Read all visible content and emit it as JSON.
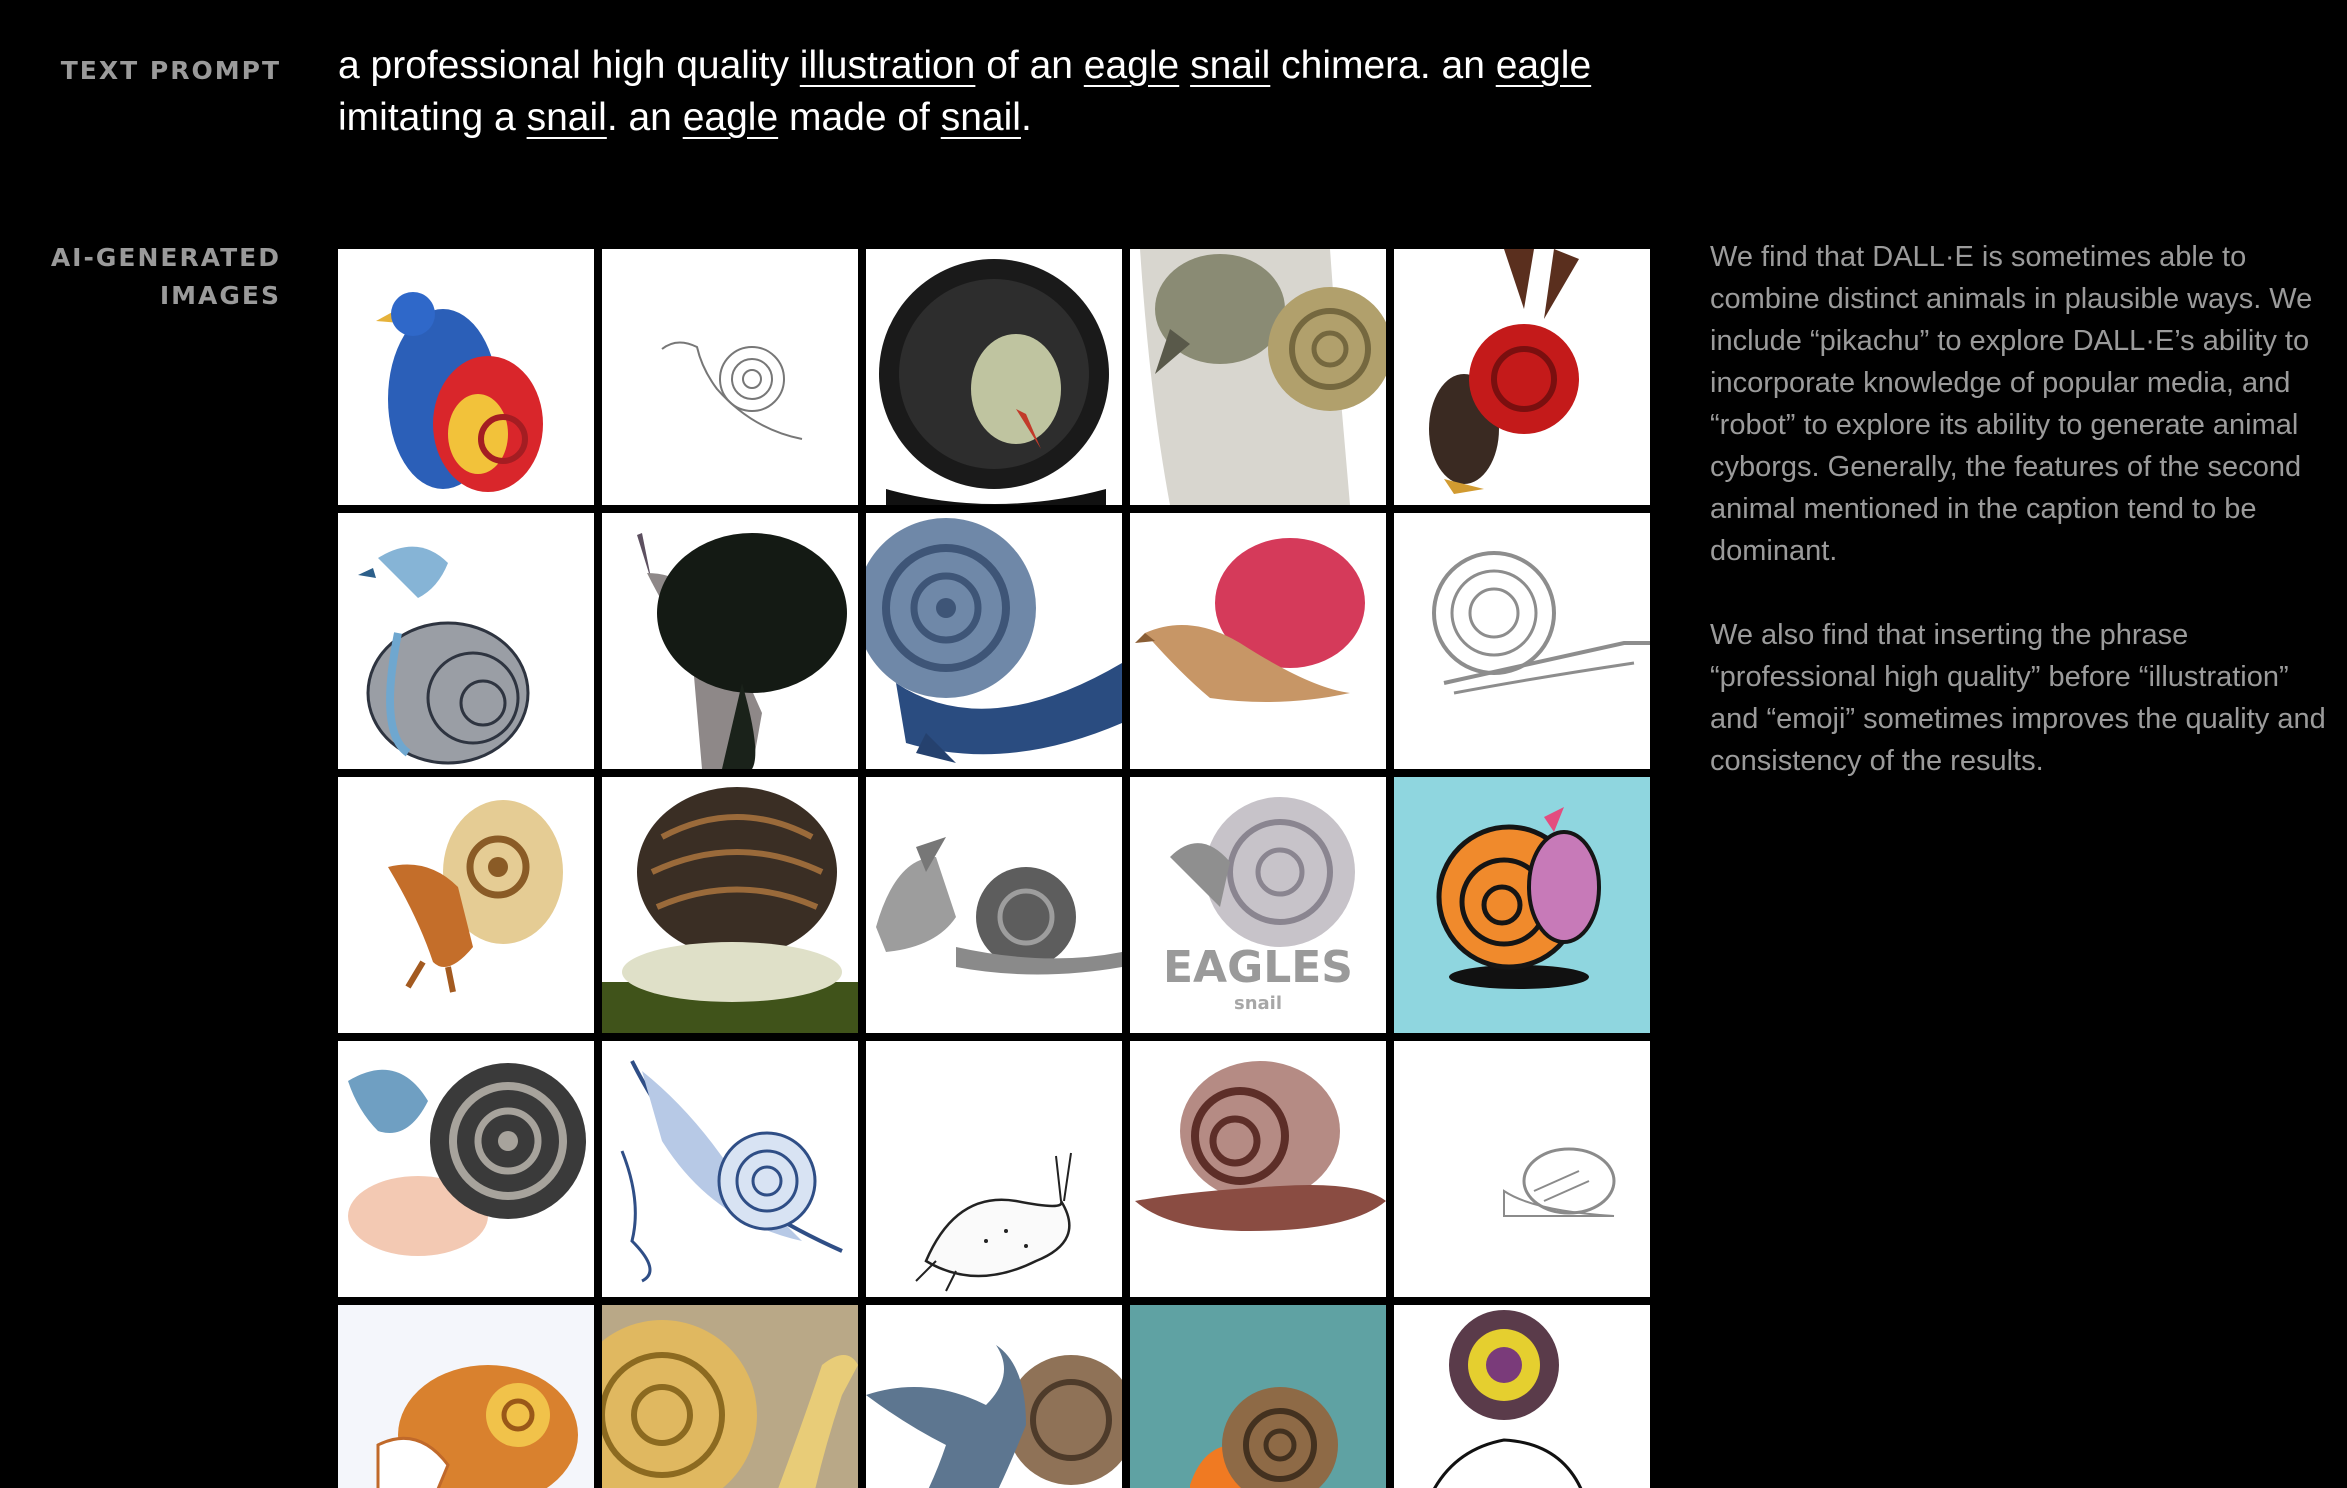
{
  "labels": {
    "text_prompt": "TEXT PROMPT",
    "ai_images_line1": "AI-GENERATED",
    "ai_images_line2": "IMAGES"
  },
  "prompt": {
    "p1": "a professional high quality ",
    "kw1": "illustration",
    "p2": " of an ",
    "kw2": "eagle",
    "p3": " ",
    "kw3": "snail",
    "p4": " chimera. an ",
    "kw4": "eagle",
    "p5": " imitating a ",
    "kw5": "snail",
    "p6": ". an ",
    "kw6": "eagle",
    "p7": " made of ",
    "kw7": "snail",
    "p8": "."
  },
  "description": {
    "para1": "We find that DALL·E is sometimes able to combine distinct animals in plausible ways. We include “pikachu” to explore DALL·E’s ability to incorporate knowledge of popular media, and “robot” to explore its ability to generate animal cyborgs. Generally, the features of the second animal mentioned in the caption tend to be dominant.",
    "para2": "We also find that inserting the phrase “professional high quality” before “illustration” and “emoji” sometimes improves the quality and consistency of the results."
  },
  "tile_text": {
    "eagles_word": "EAGLES",
    "snail_word": "snail"
  },
  "colors": {
    "background": "#000000",
    "label_gray": "#9a9a9a",
    "body_gray": "#9b9b9b",
    "tile_teal": "#8fd6df",
    "tile_sepia": "#b9a887"
  }
}
